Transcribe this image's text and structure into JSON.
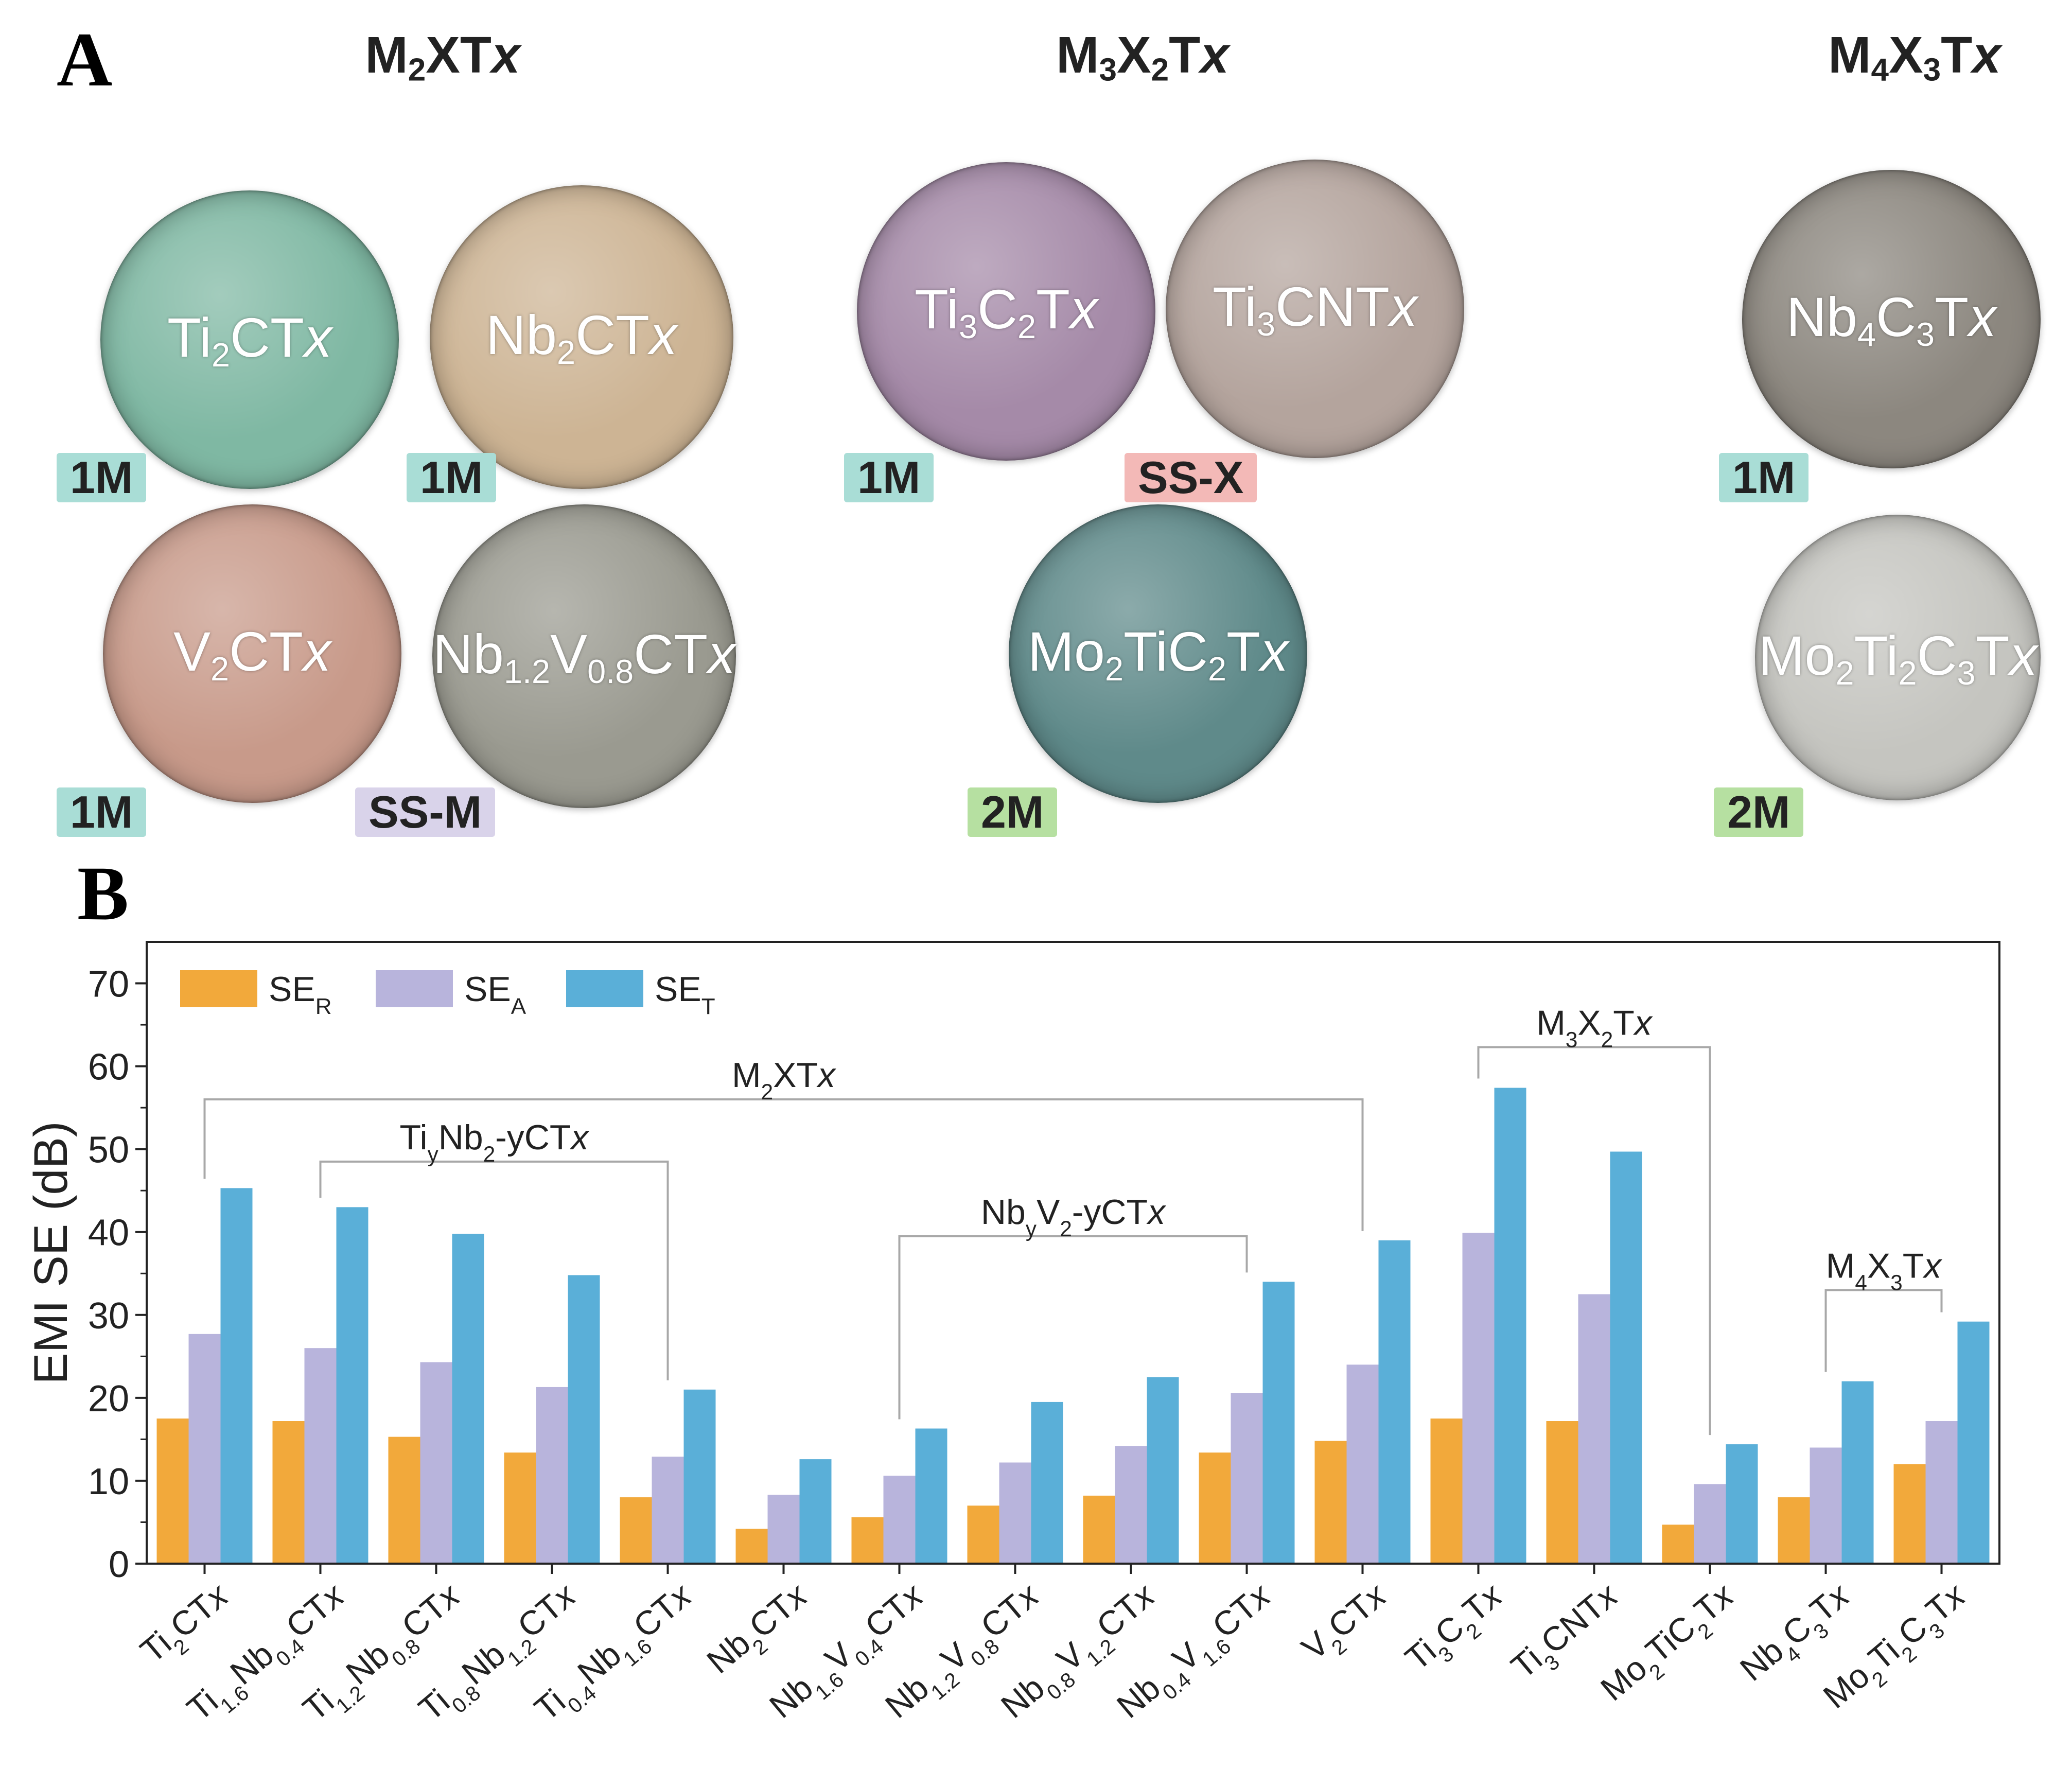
{
  "panel_a": {
    "letter": "A",
    "groups": [
      {
        "label": "M2XTx",
        "base": "M",
        "sub1": "2",
        "mid": "XT",
        "sub2": "",
        "ital": "x"
      },
      {
        "label": "M3X2Tx",
        "base": "M",
        "sub1": "3",
        "mid": "X",
        "sub2": "2",
        "tail": "T",
        "ital": "x"
      },
      {
        "label": "M4X3Tx",
        "base": "M",
        "sub1": "4",
        "mid": "X",
        "sub2": "3",
        "tail": "T",
        "ital": "x"
      }
    ],
    "films": [
      {
        "name": "Ti2CTx",
        "color": "#7fb8a3",
        "tag": "1M",
        "tag_color": "#a9ddd6"
      },
      {
        "name": "Nb2CTx",
        "color": "#cdb494",
        "tag": "1M",
        "tag_color": "#a9ddd6"
      },
      {
        "name": "V2CTx",
        "color": "#c89a8a",
        "tag": "1M",
        "tag_color": "#a9ddd6"
      },
      {
        "name": "Nb1.2V0.8CTx",
        "color": "#9a9a90",
        "tag": "SS-M",
        "tag_color": "#d9d3ea"
      },
      {
        "name": "Ti3C2Tx",
        "color": "#a58aa8",
        "tag": "1M",
        "tag_color": "#a9ddd6"
      },
      {
        "name": "Ti3CNTx",
        "color": "#b4a49d",
        "tag": "SS-X",
        "tag_color": "#f3b9b7"
      },
      {
        "name": "Mo2TiC2Tx",
        "color": "#5f8a8a",
        "tag": "2M",
        "tag_color": "#b6e0a1"
      },
      {
        "name": "Nb4C3Tx",
        "color": "#8c877f",
        "tag": "1M",
        "tag_color": "#a9ddd6"
      },
      {
        "name": "Mo2Ti2C3Tx",
        "color": "#c5c5c0",
        "tag": "2M",
        "tag_color": "#b6e0a1"
      }
    ]
  },
  "panel_b": {
    "letter": "B"
  },
  "chart_data": {
    "type": "bar",
    "ylabel": "EMI SE (dB)",
    "ylim": [
      0,
      75
    ],
    "yticks": [
      0,
      10,
      20,
      30,
      40,
      50,
      60,
      70
    ],
    "grid": false,
    "legend_placement": "top-left",
    "categories": [
      "Ti2CTx",
      "Ti1.6Nb0.4CTx",
      "Ti1.2Nb0.8CTx",
      "Ti0.8Nb1.2CTx",
      "Ti0.4Nb1.6CTx",
      "Nb2CTx",
      "Nb1.6V0.4CTx",
      "Nb1.2V0.8CTx",
      "Nb0.8V1.2CTx",
      "Nb0.4V1.6CTx",
      "V2CTx",
      "Ti3C2Tx",
      "Ti3CNTx",
      "Mo2TiC2Tx",
      "Nb4C3Tx",
      "Mo2Ti2C3Tx"
    ],
    "series": [
      {
        "name": "SER",
        "color": "#f2a93b",
        "values": [
          17.5,
          17.2,
          15.3,
          13.4,
          8.0,
          4.2,
          5.6,
          7.0,
          8.2,
          13.4,
          14.8,
          17.5,
          17.2,
          4.7,
          8.0,
          12.0
        ]
      },
      {
        "name": "SEA",
        "color": "#b8b4dc",
        "values": [
          27.7,
          26.0,
          24.3,
          21.3,
          12.9,
          8.3,
          10.6,
          12.2,
          14.2,
          20.6,
          24.0,
          39.9,
          32.5,
          9.6,
          14.0,
          17.2
        ]
      },
      {
        "name": "SET",
        "color": "#5aafd8",
        "values": [
          45.3,
          43.0,
          39.8,
          34.8,
          21.0,
          12.6,
          16.3,
          19.5,
          22.5,
          34.0,
          39.0,
          57.4,
          49.7,
          14.4,
          22.0,
          29.2
        ]
      }
    ],
    "brackets": [
      {
        "label": "M2XTx",
        "from": 0,
        "to": 10,
        "y": 56.0
      },
      {
        "label": "TiyNb2-yCTx",
        "from": 1,
        "to": 4,
        "y": 48.5
      },
      {
        "label": "NbyV2-yCTx",
        "from": 6,
        "to": 9,
        "y": 39.5
      },
      {
        "label": "M3X2Tx",
        "from": 11,
        "to": 13,
        "y": 62.3
      },
      {
        "label": "M4X3Tx",
        "from": 14,
        "to": 15,
        "y": 33.0
      }
    ]
  }
}
